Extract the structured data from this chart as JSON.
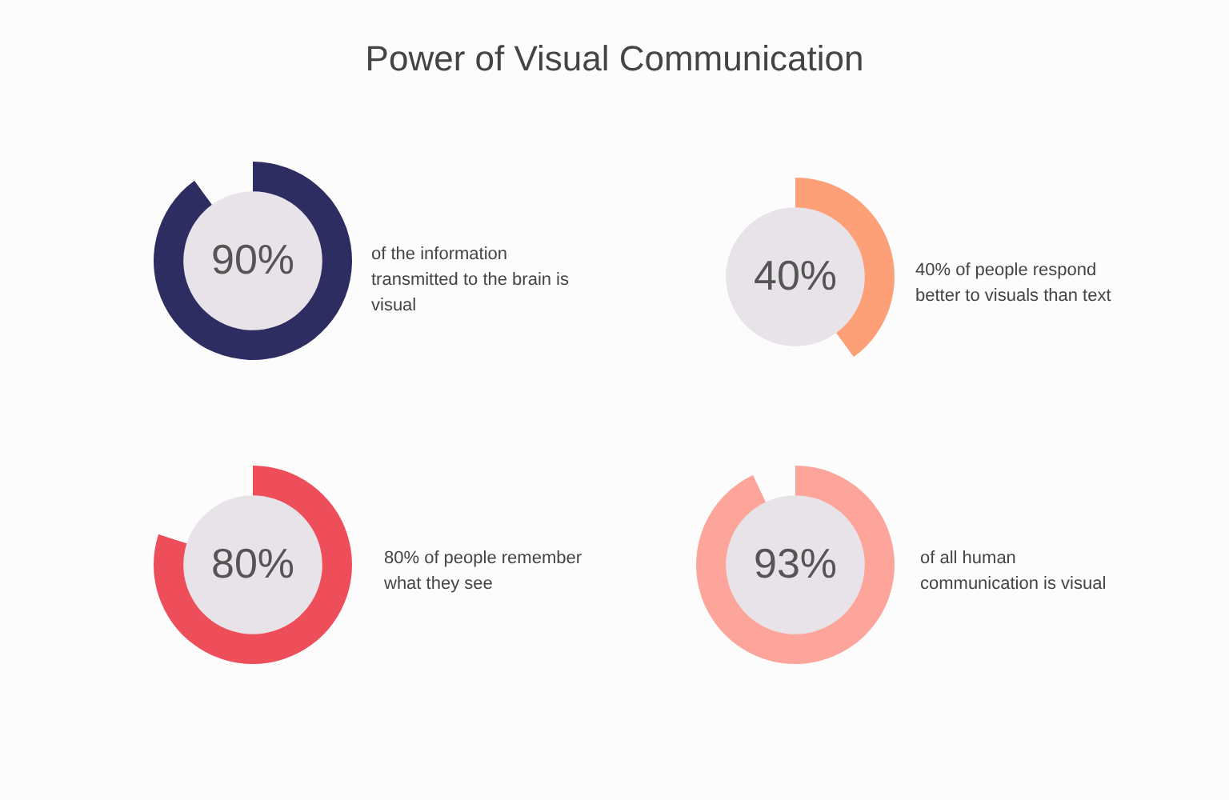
{
  "chart_data": [
    {
      "type": "other",
      "title": "Power of Visual Communication"
    },
    {
      "type": "donut",
      "categories": [
        null,
        null
      ],
      "values": [
        90,
        10
      ],
      "colors": [
        "#2e2d62",
        "#fdfcfd"
      ],
      "value_labels": [
        "90%",
        null
      ],
      "annotations": [
        "of the information transmitted to the brain is visual"
      ]
    },
    {
      "type": "donut",
      "categories": [
        null,
        null
      ],
      "values": [
        40,
        60
      ],
      "colors": [
        "#fea077",
        "#fdfcfd"
      ],
      "value_labels": [
        "40%",
        null
      ],
      "annotations": [
        "40% of people respond better to visuals than text"
      ]
    },
    {
      "type": "donut",
      "categories": [
        null,
        null
      ],
      "values": [
        80,
        20
      ],
      "colors": [
        "#ee4d5a",
        "#fdfcfd"
      ],
      "value_labels": [
        "80%",
        null
      ],
      "annotations": [
        "80% of people remember what they see"
      ]
    },
    {
      "type": "donut",
      "categories": [
        null,
        null
      ],
      "values": [
        93,
        7
      ],
      "colors": [
        "#fda59b",
        "#fdfcfd"
      ],
      "value_labels": [
        "93%",
        null
      ],
      "annotations": [
        "of all human communication is visual"
      ]
    }
  ]
}
